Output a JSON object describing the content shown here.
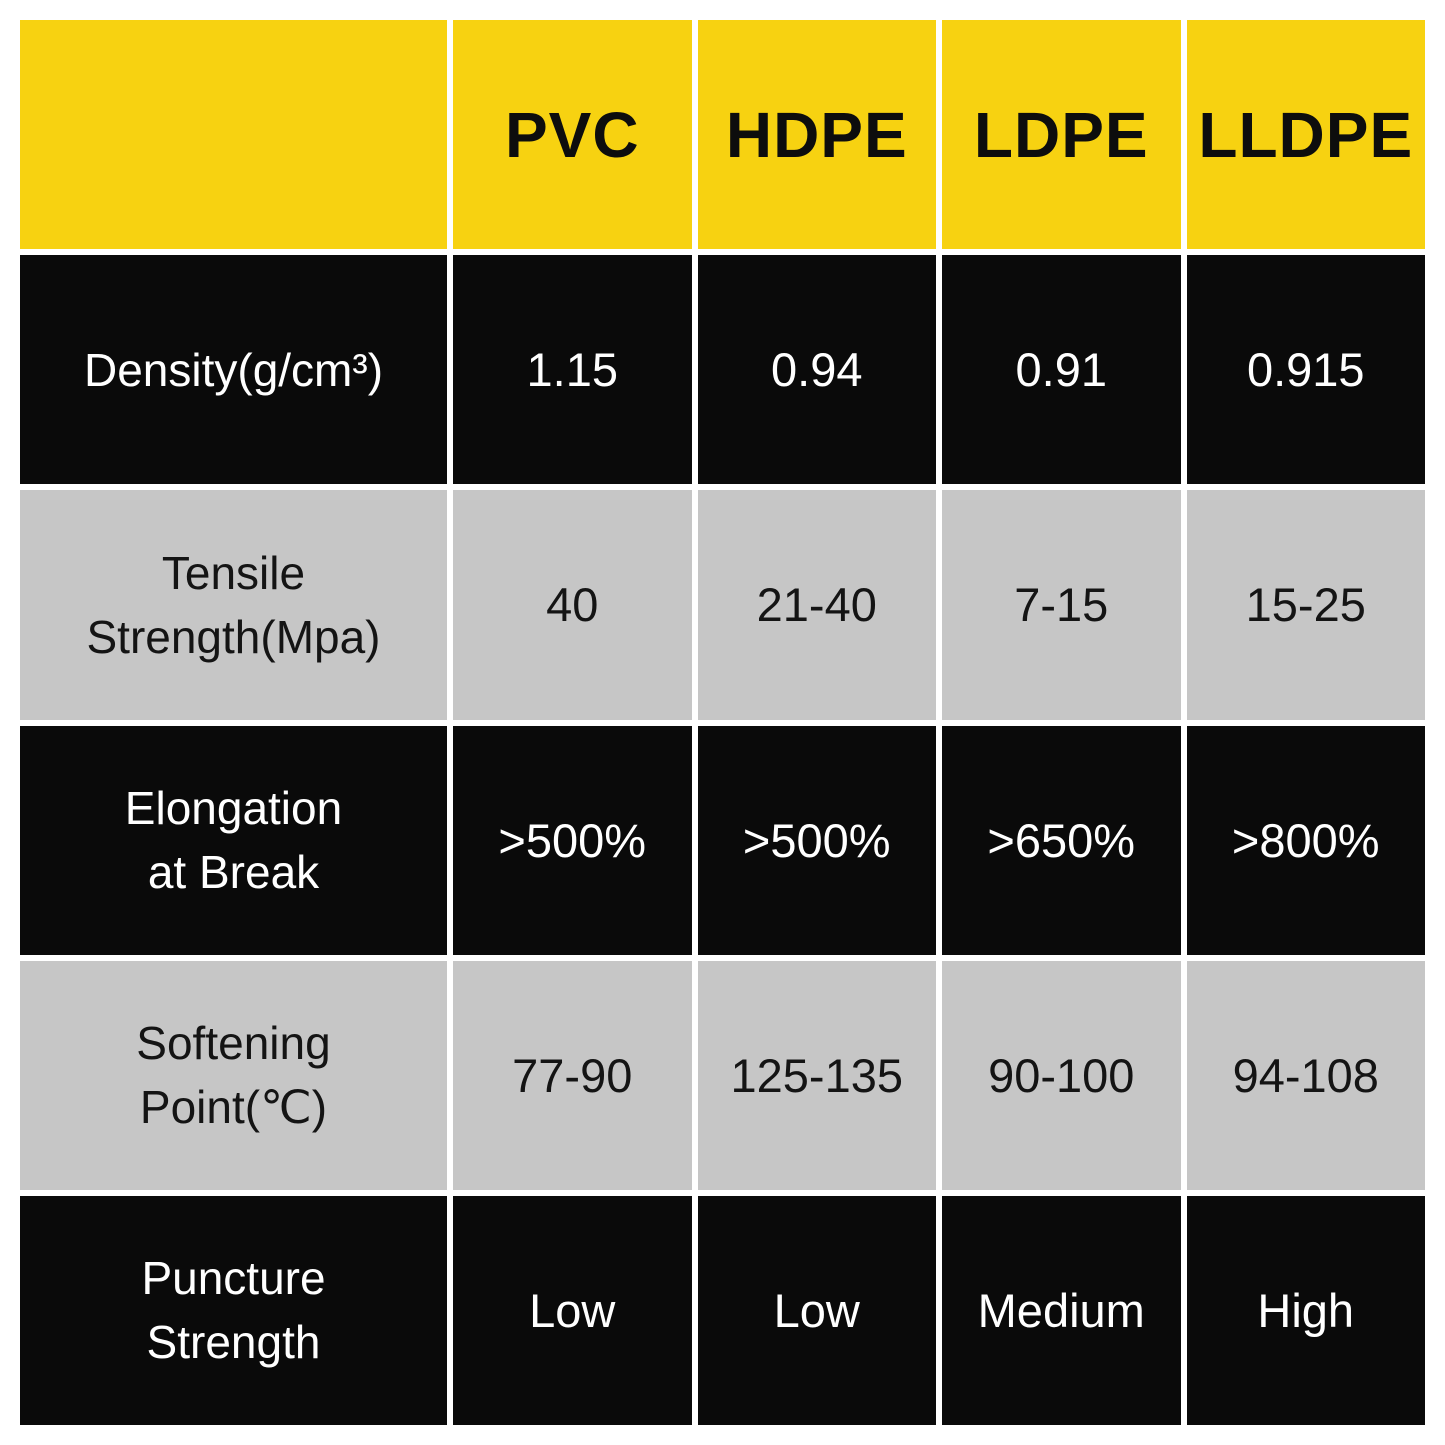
{
  "chart_data": {
    "type": "table",
    "title": "",
    "columns": [
      "",
      "PVC",
      "HDPE",
      "LDPE",
      "LLDPE"
    ],
    "rows": [
      {
        "property": "Density(g/cm³)",
        "values": [
          "1.15",
          "0.94",
          "0.91",
          "0.915"
        ]
      },
      {
        "property": "Tensile Strength(Mpa)",
        "values": [
          "40",
          "21-40",
          "7-15",
          "15-25"
        ]
      },
      {
        "property": "Elongation at Break",
        "values": [
          ">500%",
          ">500%",
          ">650%",
          ">800%"
        ]
      },
      {
        "property": "Softening Point(℃)",
        "values": [
          "77-90",
          "125-135",
          "90-100",
          "94-108"
        ]
      },
      {
        "property": "Puncture Strength",
        "values": [
          "Low",
          "Low",
          "Medium",
          "High"
        ]
      }
    ]
  },
  "table": {
    "corner": "",
    "header": [
      "PVC",
      "HDPE",
      "LDPE",
      "LLDPE"
    ],
    "rows": [
      {
        "label": "Density(g/cm³)",
        "values": [
          "1.15",
          "0.94",
          "0.91",
          "0.915"
        ]
      },
      {
        "label": "Tensile\nStrength(Mpa)",
        "values": [
          "40",
          "21-40",
          "7-15",
          "15-25"
        ]
      },
      {
        "label": "Elongation\nat Break",
        "values": [
          ">500%",
          ">500%",
          ">650%",
          ">800%"
        ]
      },
      {
        "label": "Softening\nPoint(℃)",
        "values": [
          "77-90",
          "125-135",
          "90-100",
          "94-108"
        ]
      },
      {
        "label": "Puncture\nStrength",
        "values": [
          "Low",
          "Low",
          "Medium",
          "High"
        ]
      }
    ]
  },
  "colors": {
    "header_bg": "#F7D211",
    "header_text": "#0d0d0d",
    "dark_bg": "#0a0a0a",
    "dark_text": "#ffffff",
    "light_bg": "#c6c6c6",
    "light_text": "#141414",
    "gap": "#ffffff"
  }
}
